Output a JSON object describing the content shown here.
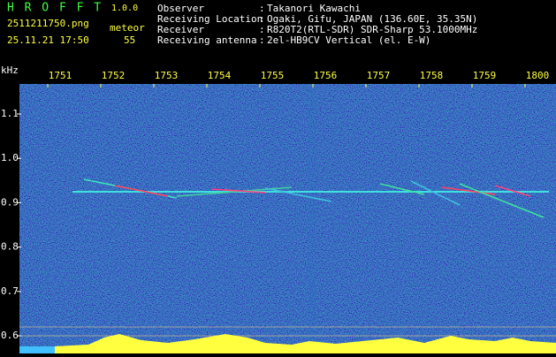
{
  "header": {
    "app": "H R O F F T",
    "version": "1.0.0",
    "file": "2511211750.png",
    "meteor_label": "meteor",
    "datetime": "25.11.21 17:50",
    "meteor_count": "55"
  },
  "info": {
    "separator": ":",
    "rows": [
      {
        "label": "Observer",
        "value": "Takanori Kawachi"
      },
      {
        "label": "Receiving Location",
        "value": "Ogaki, Gifu, JAPAN (136.60E, 35.35N)"
      },
      {
        "label": "Receiver",
        "value": "R820T2(RTL-SDR) SDR-Sharp 53.1000MHz"
      },
      {
        "label": "Receiving antenna",
        "value": "2el-HB9CV Vertical (el. E-W)"
      }
    ]
  },
  "axis": {
    "unit": "kHz",
    "y_ticks": [
      "1.1",
      "1.0",
      "0.9",
      "0.8",
      "0.7",
      "0.6"
    ],
    "x_ticks": [
      "1751",
      "1752",
      "1753",
      "1754",
      "1755",
      "1756",
      "1757",
      "1758",
      "1759",
      "1800"
    ]
  }
}
